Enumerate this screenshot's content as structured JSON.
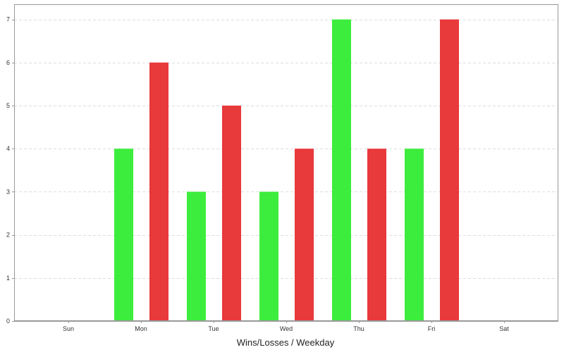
{
  "chart_data": {
    "type": "bar",
    "title": "",
    "xlabel": "Wins/Losses / Weekday",
    "ylabel": "",
    "categories": [
      "Sun",
      "Mon",
      "Tue",
      "Wed",
      "Thu",
      "Fri",
      "Sat"
    ],
    "series": [
      {
        "values": [
          0,
          4,
          3,
          3,
          7,
          4,
          0
        ],
        "color": "#3ded3d"
      },
      {
        "values": [
          0,
          6,
          5,
          4,
          4,
          7,
          0
        ],
        "color": "#e8393b"
      }
    ],
    "ylim": [
      0,
      7.5
    ],
    "yticks": [
      0,
      1,
      2,
      3,
      4,
      5,
      6,
      7
    ],
    "grid": true,
    "legend": "none"
  },
  "colors": {
    "grid": "#dddddd",
    "axis": "#999999",
    "plot_border": "#999999"
  }
}
